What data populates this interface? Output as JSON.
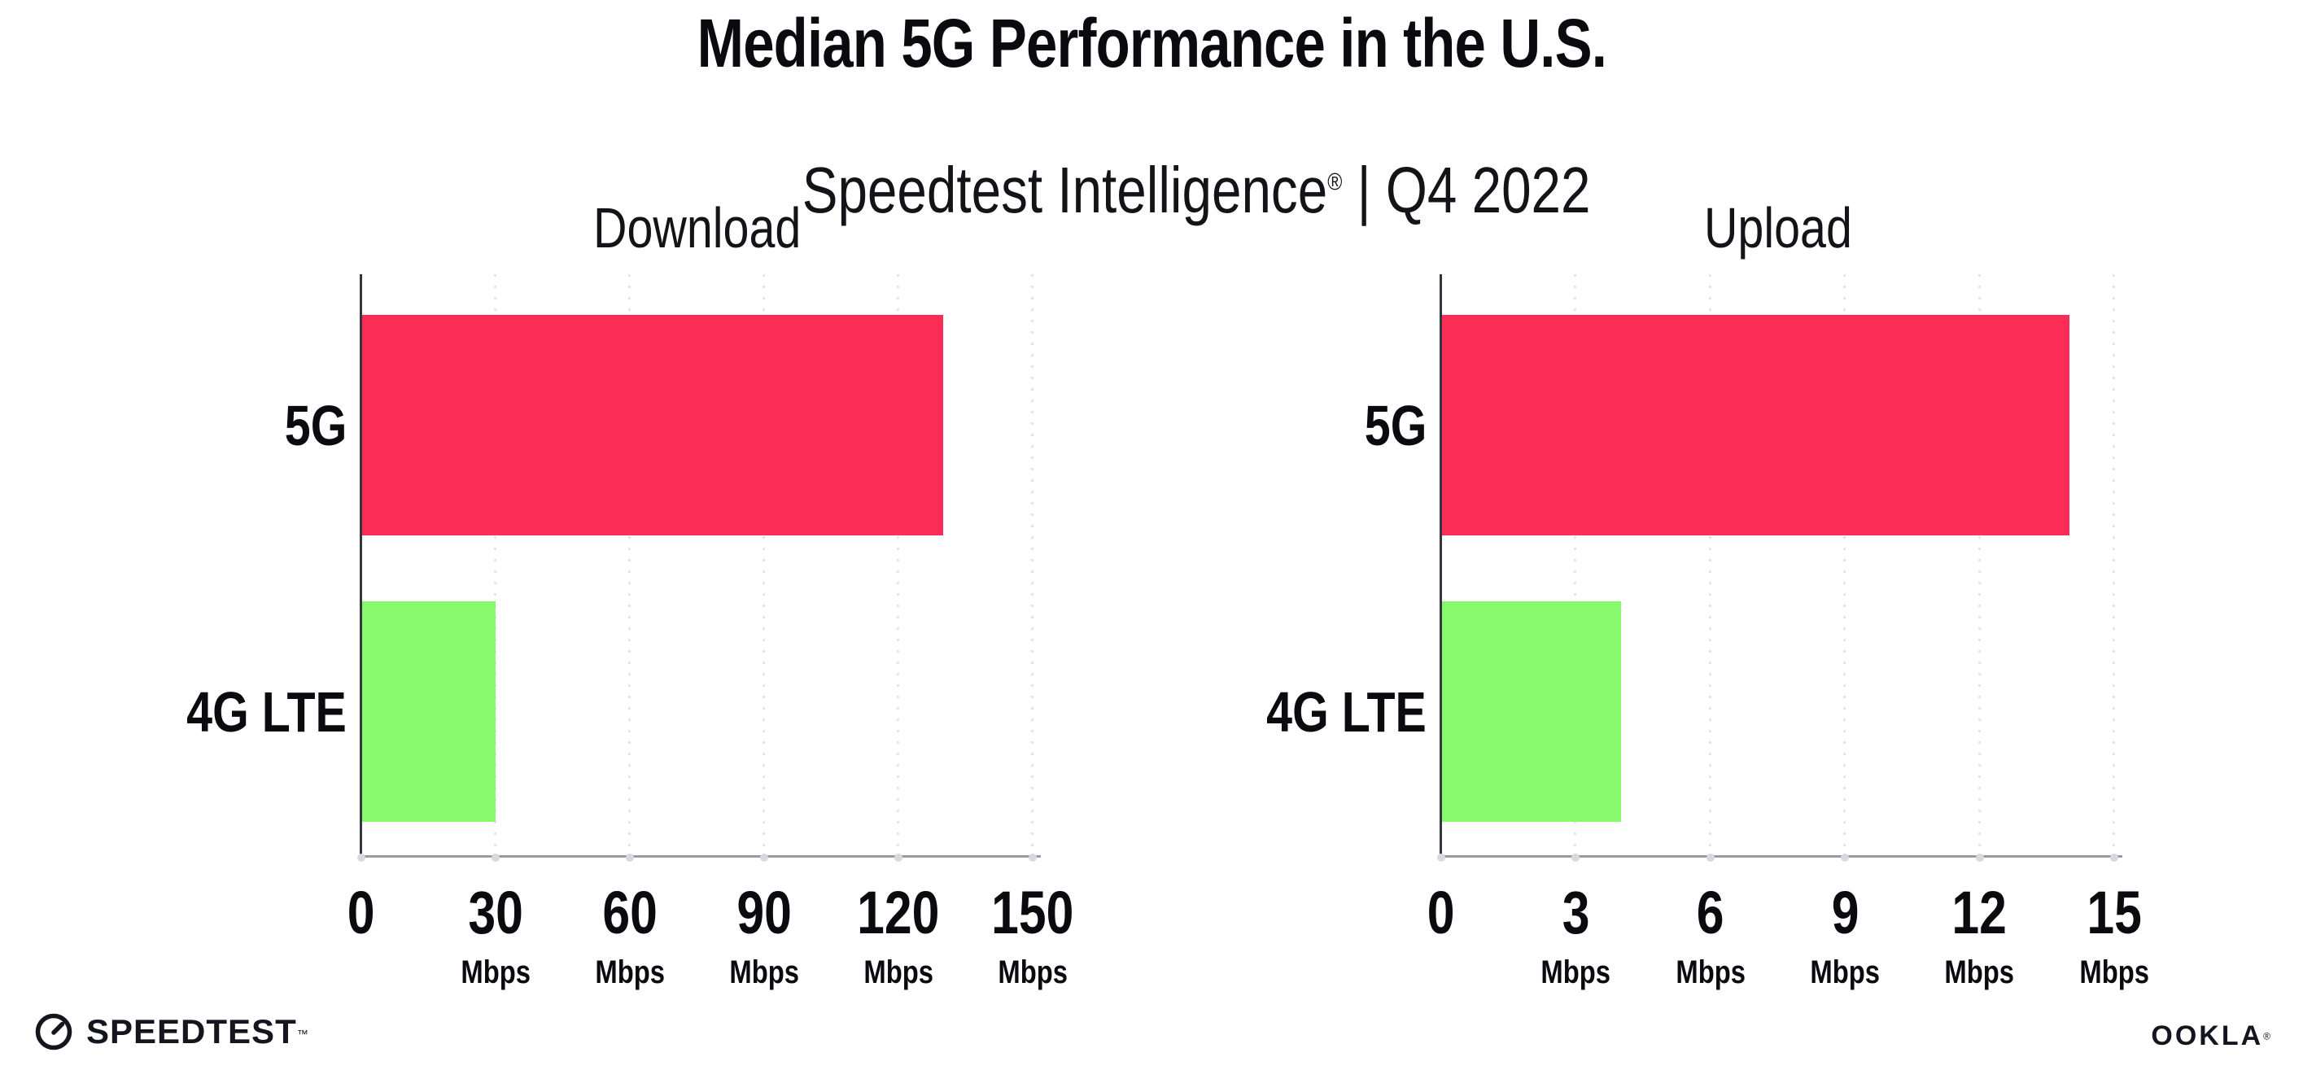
{
  "header": {
    "title": "Median 5G Performance in the U.S.",
    "subtitle": {
      "brand": "Speedtest Intelligence",
      "registered_mark": "®",
      "separator": " | ",
      "period": "Q4 2022"
    }
  },
  "chart_data": [
    {
      "type": "bar",
      "orientation": "horizontal",
      "title": "Download",
      "categories": [
        "5G",
        "4G LTE"
      ],
      "values": [
        130,
        30
      ],
      "unit": "Mbps",
      "xlabel": "",
      "ylabel": "",
      "xlim": [
        0,
        150
      ],
      "xticks": [
        0,
        30,
        60,
        90,
        120,
        150
      ],
      "xtick_unit_label": "Mbps",
      "bar_colors": [
        "#fb2d56",
        "#86fa6c"
      ],
      "grid": "vertical-dotted",
      "legend": "none"
    },
    {
      "type": "bar",
      "orientation": "horizontal",
      "title": "Upload",
      "categories": [
        "5G",
        "4G LTE"
      ],
      "values": [
        14,
        4
      ],
      "unit": "Mbps",
      "xlabel": "",
      "ylabel": "",
      "xlim": [
        0,
        15
      ],
      "xticks": [
        0,
        3,
        6,
        9,
        12,
        15
      ],
      "xtick_unit_label": "Mbps",
      "bar_colors": [
        "#fb2d56",
        "#86fa6c"
      ],
      "grid": "vertical-dotted",
      "legend": "none"
    }
  ],
  "footer": {
    "speedtest": {
      "icon": "gauge-icon",
      "wordmark": "SPEEDTEST",
      "trademark": "™"
    },
    "ookla": {
      "wordmark": "OOKLA",
      "registered_mark": "®"
    }
  },
  "colors": {
    "bar_5g": "#fb2d56",
    "bar_4g_lte": "#86fa6c",
    "gridline": "#e4e4ee",
    "axis_line": "#9b9b9b",
    "yaxis_line": "#35353f",
    "text": "#0a0a0f"
  }
}
